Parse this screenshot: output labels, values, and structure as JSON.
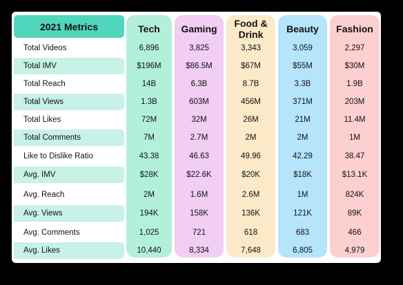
{
  "table": {
    "title": "2021 Metrics",
    "columns": [
      {
        "name": "Tech",
        "color": "#b3f0dc"
      },
      {
        "name": "Gaming",
        "color": "#f2cdf4"
      },
      {
        "name": "Food & Drink",
        "color": "#fbe9c8"
      },
      {
        "name": "Beauty",
        "color": "#b6e4fa"
      },
      {
        "name": "Fashion",
        "color": "#fcd0d0"
      }
    ],
    "rows": [
      {
        "label": "Total Videos",
        "values": [
          "6,896",
          "3,825",
          "3,343",
          "3,059",
          "2,297"
        ]
      },
      {
        "label": "Total IMV",
        "values": [
          "$196M",
          "$86.5M",
          "$67M",
          "$55M",
          "$30M"
        ]
      },
      {
        "label": "Total Reach",
        "values": [
          "14B",
          "6.3B",
          "8.7B",
          "3.3B",
          "1.9B"
        ]
      },
      {
        "label": "Total Views",
        "values": [
          "1.3B",
          "603M",
          "456M",
          "371M",
          "203M"
        ]
      },
      {
        "label": "Total Likes",
        "values": [
          "72M",
          "32M",
          "26M",
          "21M",
          "11.4M"
        ]
      },
      {
        "label": "Total Comments",
        "values": [
          "7M",
          "2.7M",
          "2M",
          "2M",
          "1M"
        ]
      },
      {
        "label": "Like to Dislike Ratio",
        "values": [
          "43.38",
          "46.63",
          "49.96",
          "42.29",
          "38.47"
        ]
      },
      {
        "label": "Avg. IMV",
        "values": [
          "$28K",
          "$22.6K",
          "$20K",
          "$18K",
          "$13.1K"
        ]
      },
      {
        "label": "Avg. Reach",
        "values": [
          "2M",
          "1.6M",
          "2.6M",
          "1M",
          "824K"
        ]
      },
      {
        "label": "Avg. Views",
        "values": [
          "194K",
          "158K",
          "136K",
          "121K",
          "89K"
        ]
      },
      {
        "label": "Avg. Comments",
        "values": [
          "1,025",
          "721",
          "618",
          "683",
          "466"
        ]
      },
      {
        "label": "Avg. Likes",
        "values": [
          "10,440",
          "8,334",
          "7,648",
          "6,805",
          "4,979"
        ]
      }
    ]
  }
}
